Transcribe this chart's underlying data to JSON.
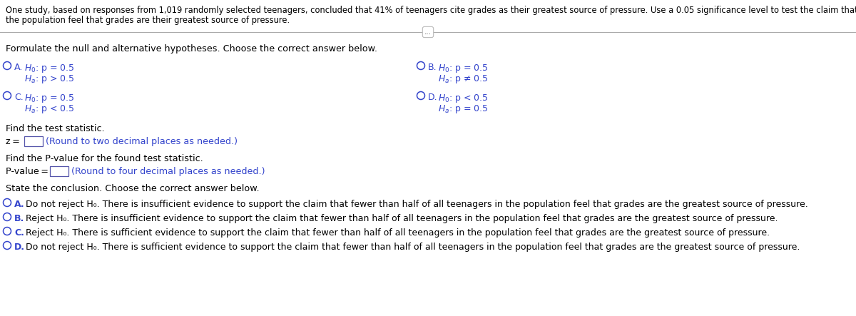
{
  "bg_color": "#ffffff",
  "text_color": "#000000",
  "blue_color": "#3344cc",
  "circle_color": "#3344cc",
  "intro_line1": "One study, based on responses from 1,019 randomly selected teenagers, concluded that 41% of teenagers cite grades as their greatest source of pressure. Use a 0.05 significance level to test the claim that fewer than half of all teenagers in",
  "intro_line2": "the population feel that grades are their greatest source of pressure.",
  "divider_label": "...",
  "hypotheses_header": "Formulate the null and alternative hypotheses. Choose the correct answer below.",
  "test_stat_header": "Find the test statistic.",
  "z_label": "z = ",
  "z_hint": "(Round to two decimal places as needed.)",
  "pval_header": "Find the P-value for the found test statistic.",
  "pval_label": "P-value = ",
  "pval_hint": "(Round to four decimal places as needed.)",
  "conclusion_header": "State the conclusion. Choose the correct answer below.",
  "concA": "Do not reject H₀. There is insufficient evidence to support the claim that fewer than half of all teenagers in the population feel that grades are the greatest source of pressure.",
  "concB": "Reject H₀. There is insufficient evidence to support the claim that fewer than half of all teenagers in the population feel that grades are the greatest source of pressure.",
  "concC": "Reject H₀. There is sufficient evidence to support the claim that fewer than half of all teenagers in the population feel that grades are the greatest source of pressure.",
  "concD": "Do not reject H₀. There is sufficient evidence to support the claim that fewer than half of all teenagers in the population feel that grades are the greatest source of pressure.",
  "fs_intro": 8.3,
  "fs_body": 9.2,
  "fs_opt": 9.0,
  "fs_hyp": 9.0
}
